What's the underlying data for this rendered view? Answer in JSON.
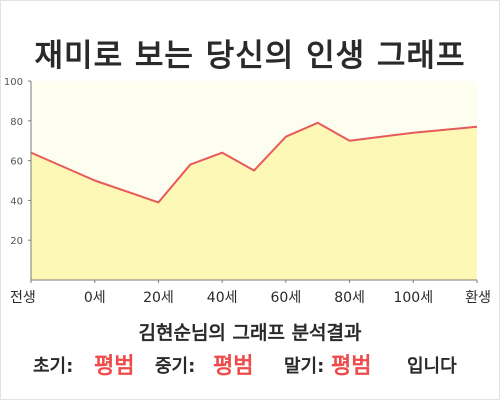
{
  "page": {
    "title": "재미로 보는 당신의 인생 그래프"
  },
  "summary": {
    "heading": "김현순님의 그래프 분석결과",
    "early_label": "초기:",
    "early_value": "평범",
    "middle_label": "중기:",
    "middle_value": "평범",
    "late_label": "말기:",
    "late_value": "평범",
    "closing": "입니다",
    "value_color": "#ef4b4b"
  },
  "chart_data": {
    "type": "area",
    "categories": [
      "전생",
      "0세",
      "20세",
      "40세",
      "60세",
      "80세",
      "100세",
      "환생"
    ],
    "points": [
      {
        "x": 0,
        "y": 64
      },
      {
        "x": 1,
        "y": 50
      },
      {
        "x": 2,
        "y": 39
      },
      {
        "x": 2.5,
        "y": 58
      },
      {
        "x": 3,
        "y": 64
      },
      {
        "x": 3.5,
        "y": 55
      },
      {
        "x": 4,
        "y": 72
      },
      {
        "x": 4.5,
        "y": 79
      },
      {
        "x": 5,
        "y": 70
      },
      {
        "x": 6,
        "y": 74
      },
      {
        "x": 7,
        "y": 77
      }
    ],
    "ylim": [
      0,
      100
    ],
    "yticks": [
      20,
      40,
      60,
      80,
      100
    ],
    "grid": false,
    "line_color": "#e85a5a",
    "fill_color": "#fdf8b6",
    "plot_background": "#fefef0"
  }
}
